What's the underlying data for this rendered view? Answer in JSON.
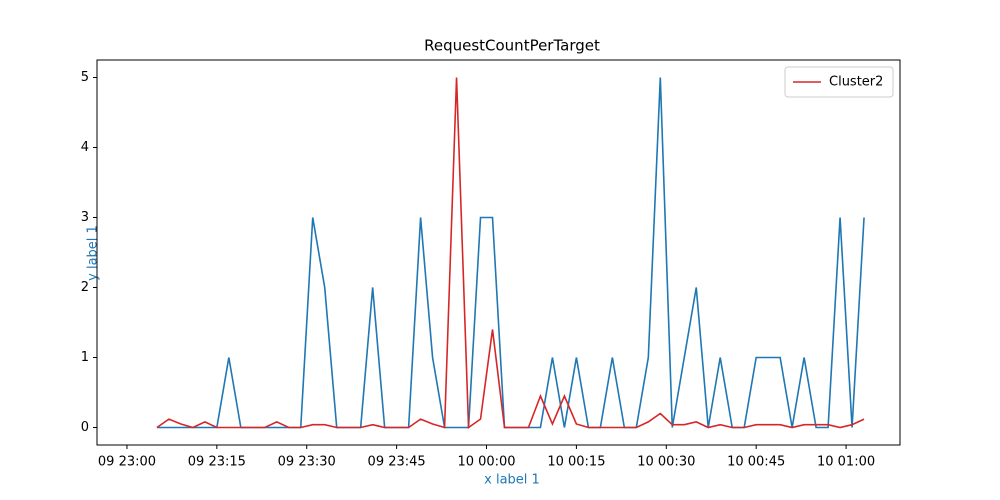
{
  "chart_data": {
    "type": "line",
    "title": "RequestCountPerTarget",
    "x_label": "x label 1",
    "y_label": "y label 1",
    "x": [
      "09 23:05",
      "09 23:07",
      "09 23:09",
      "09 23:11",
      "09 23:13",
      "09 23:15",
      "09 23:17",
      "09 23:19",
      "09 23:21",
      "09 23:23",
      "09 23:25",
      "09 23:27",
      "09 23:29",
      "09 23:31",
      "09 23:33",
      "09 23:35",
      "09 23:37",
      "09 23:39",
      "09 23:41",
      "09 23:43",
      "09 23:45",
      "09 23:47",
      "09 23:49",
      "09 23:51",
      "09 23:53",
      "09 23:55",
      "09 23:57",
      "09 23:59",
      "10 00:01",
      "10 00:03",
      "10 00:05",
      "10 00:07",
      "10 00:09",
      "10 00:11",
      "10 00:13",
      "10 00:15",
      "10 00:17",
      "10 00:19",
      "10 00:21",
      "10 00:23",
      "10 00:25",
      "10 00:27",
      "10 00:29",
      "10 00:31",
      "10 00:33",
      "10 00:35",
      "10 00:37",
      "10 00:39",
      "10 00:41",
      "10 00:43",
      "10 00:45",
      "10 00:47",
      "10 00:49",
      "10 00:51",
      "10 00:53",
      "10 00:55",
      "10 00:57",
      "10 00:59",
      "10 01:01",
      "10 01:03"
    ],
    "series": [
      {
        "color": "#1f77b4",
        "values": [
          0,
          0,
          0,
          0,
          0,
          0,
          1,
          0,
          0,
          0,
          0,
          0,
          0,
          3,
          2,
          0,
          0,
          0,
          2,
          0,
          0,
          0,
          3,
          1,
          0,
          0,
          0,
          3,
          3,
          0,
          0,
          0,
          0,
          1,
          0,
          1,
          0,
          0,
          1,
          0,
          0,
          1,
          5,
          0,
          1,
          2,
          0,
          1,
          0,
          0,
          1,
          1,
          1,
          0,
          1,
          0,
          0,
          3,
          0,
          3
        ]
      },
      {
        "name": "Cluster2",
        "color": "#d62728",
        "values": [
          0,
          0.12,
          0.05,
          0,
          0.08,
          0,
          0,
          0,
          0,
          0,
          0.08,
          0,
          0,
          0.04,
          0.04,
          0,
          0,
          0,
          0.04,
          0,
          0,
          0,
          0.12,
          0.05,
          0,
          5,
          0,
          0.12,
          1.4,
          0,
          0,
          0,
          0.45,
          0.05,
          0.45,
          0.05,
          0,
          0,
          0,
          0,
          0,
          0.08,
          0.2,
          0.04,
          0.04,
          0.08,
          0,
          0.04,
          0,
          0,
          0.04,
          0.04,
          0.04,
          0,
          0.04,
          0.04,
          0.04,
          0,
          0.04,
          0.12
        ]
      }
    ],
    "xlim": [
      "09 22:55",
      "10 01:09"
    ],
    "xticks": [
      "09 23:00",
      "09 23:15",
      "09 23:30",
      "09 23:45",
      "10 00:00",
      "10 00:15",
      "10 00:30",
      "10 00:45",
      "10 01:00"
    ],
    "ylim": [
      -0.25,
      5.25
    ],
    "yticks": [
      0,
      1,
      2,
      3,
      4,
      5
    ],
    "legend": "upper right"
  }
}
